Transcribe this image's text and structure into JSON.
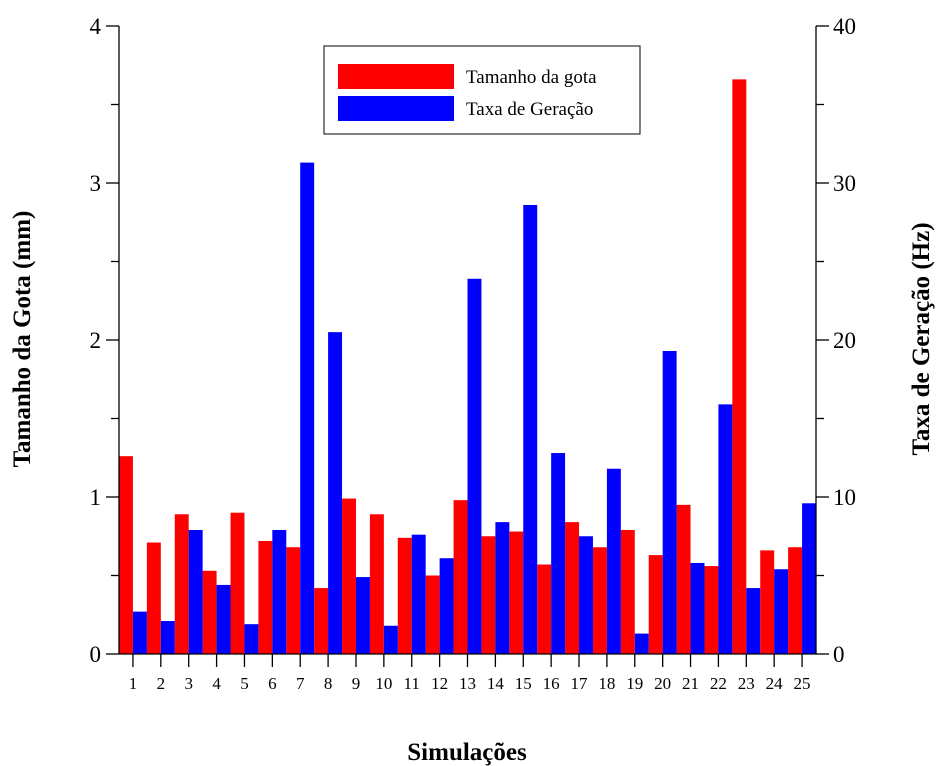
{
  "chart_data": {
    "type": "bar",
    "categories": [
      "1",
      "2",
      "3",
      "4",
      "5",
      "6",
      "7",
      "8",
      "9",
      "10",
      "11",
      "12",
      "13",
      "14",
      "15",
      "16",
      "17",
      "18",
      "19",
      "20",
      "21",
      "22",
      "23",
      "24",
      "25"
    ],
    "xlabel": "Simulações",
    "ylabel": "Tamanho da Gota (mm)",
    "y2label": "Taxa de Geração (Hz)",
    "ylim": [
      0,
      4
    ],
    "y2lim": [
      0,
      40
    ],
    "yticks": [
      "0",
      "1",
      "2",
      "3",
      "4"
    ],
    "y2ticks": [
      "0",
      "10",
      "20",
      "30",
      "40"
    ],
    "grid": false,
    "legend_position": "top-center",
    "series": [
      {
        "name": "Tamanho da gota",
        "axis": "left",
        "color": "#ff0000",
        "values": [
          1.26,
          0.71,
          0.89,
          0.53,
          0.9,
          0.72,
          0.68,
          0.42,
          0.99,
          0.89,
          0.74,
          0.5,
          0.98,
          0.75,
          0.78,
          0.57,
          0.84,
          0.68,
          0.79,
          0.63,
          0.95,
          0.56,
          3.66,
          0.66,
          0.68
        ]
      },
      {
        "name": "Taxa de Geração",
        "axis": "right",
        "color": "#0000ff",
        "values": [
          2.7,
          2.1,
          7.9,
          4.4,
          1.9,
          7.9,
          31.3,
          20.5,
          4.9,
          1.8,
          7.6,
          6.1,
          23.9,
          8.4,
          28.6,
          12.8,
          7.5,
          11.8,
          1.3,
          19.3,
          5.8,
          15.9,
          4.2,
          5.4,
          9.6
        ]
      }
    ]
  }
}
